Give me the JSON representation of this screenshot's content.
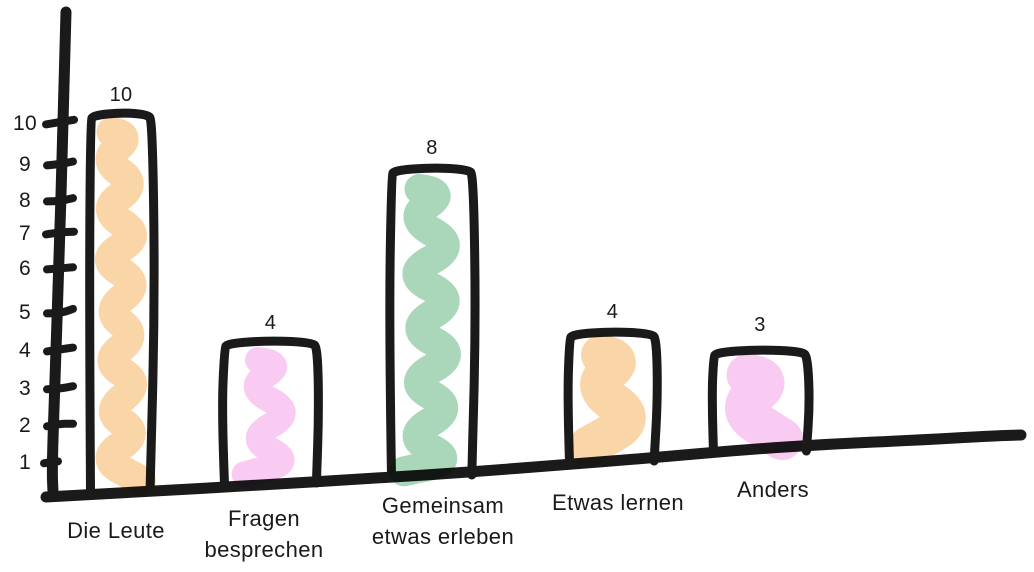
{
  "chart_data": {
    "type": "bar",
    "title": "",
    "xlabel": "",
    "ylabel": "",
    "style": "hand-drawn-sketch",
    "grid": false,
    "legend": false,
    "background_color": "#FFFFFF",
    "stroke_color": "#1A1A1A",
    "categories": [
      "Die Leute",
      "Fragen besprechen",
      "Gemeinsam etwas erleben",
      "Etwas lernen",
      "Anders"
    ],
    "values": [
      10,
      4,
      8,
      4,
      3
    ],
    "value_labels": [
      "10",
      "4",
      "8",
      "4",
      "3"
    ],
    "category_label_lines": [
      [
        "Die Leute"
      ],
      [
        "Fragen",
        "besprechen"
      ],
      [
        "Gemeinsam",
        "etwas erleben"
      ],
      [
        "Etwas lernen"
      ],
      [
        "Anders"
      ]
    ],
    "bar_fill_colors": [
      "#F9D5A7",
      "#F9CBF2",
      "#AAD6BA",
      "#F9D5A7",
      "#F9CBF2"
    ],
    "y_ticks": [
      1,
      2,
      3,
      4,
      5,
      6,
      7,
      8,
      9,
      10
    ],
    "ylim": [
      0,
      10
    ]
  }
}
